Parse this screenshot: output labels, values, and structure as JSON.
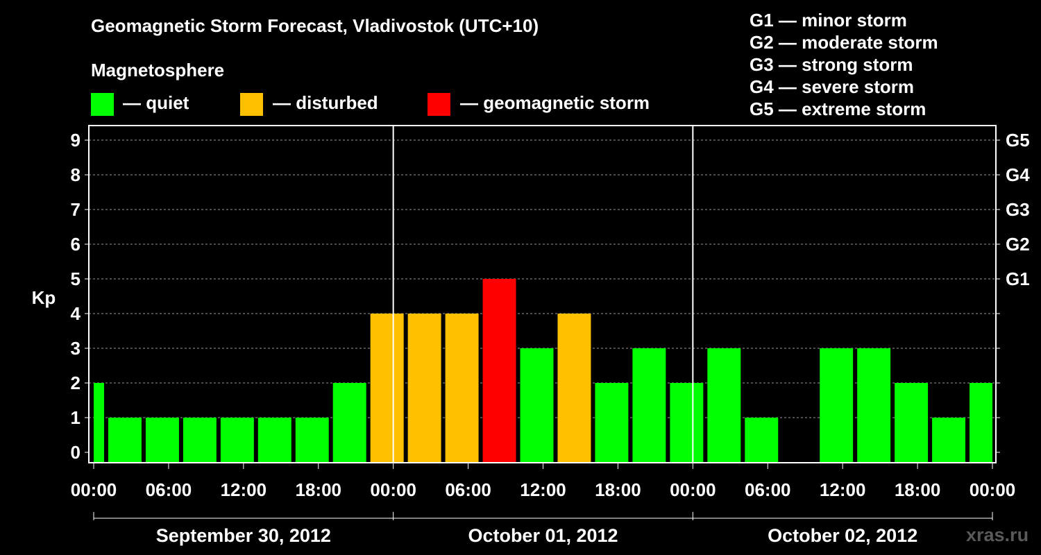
{
  "header": {
    "title": "Geomagnetic Storm Forecast, Vladivostok (UTC+10)",
    "magnetosphere_label": "Magnetosphere"
  },
  "legend": [
    {
      "label": "— quiet",
      "color": "#00ff00"
    },
    {
      "label": "— disturbed",
      "color": "#ffc000"
    },
    {
      "label": "— geomagnetic storm",
      "color": "#ff0000"
    }
  ],
  "storm_scale": [
    "G1 — minor storm",
    "G2 — moderate storm",
    "G3 — strong storm",
    "G4 — severe storm",
    "G5 — extreme storm"
  ],
  "watermark": "xras.ru",
  "chart_data": {
    "type": "bar",
    "title": "Geomagnetic Storm Forecast, Vladivostok (UTC+10)",
    "ylabel": "Kp",
    "ylim": [
      0,
      9
    ],
    "y_ticks": [
      "0",
      "1",
      "2",
      "3",
      "4",
      "5",
      "6",
      "7",
      "8",
      "9"
    ],
    "right_axis_labels": [
      {
        "kp": 5,
        "label": "G1"
      },
      {
        "kp": 6,
        "label": "G2"
      },
      {
        "kp": 7,
        "label": "G3"
      },
      {
        "kp": 8,
        "label": "G4"
      },
      {
        "kp": 9,
        "label": "G5"
      }
    ],
    "x_hours_range": [
      0,
      72
    ],
    "x_tick_labels": [
      "00:00",
      "06:00",
      "12:00",
      "18:00",
      "00:00",
      "06:00",
      "12:00",
      "18:00",
      "00:00",
      "06:00",
      "12:00",
      "18:00",
      "00:00"
    ],
    "day_labels": [
      "September 30, 2012",
      "October 01, 2012",
      "October 02, 2012"
    ],
    "status_colors": {
      "quiet": "#00ff00",
      "disturbed": "#ffc000",
      "storm": "#ff0000"
    },
    "bars": [
      {
        "start": 0,
        "end": 1,
        "kp": 2,
        "status": "quiet"
      },
      {
        "start": 1,
        "end": 4,
        "kp": 1,
        "status": "quiet"
      },
      {
        "start": 4,
        "end": 7,
        "kp": 1,
        "status": "quiet"
      },
      {
        "start": 7,
        "end": 10,
        "kp": 1,
        "status": "quiet"
      },
      {
        "start": 10,
        "end": 13,
        "kp": 1,
        "status": "quiet"
      },
      {
        "start": 13,
        "end": 16,
        "kp": 1,
        "status": "quiet"
      },
      {
        "start": 16,
        "end": 19,
        "kp": 1,
        "status": "quiet"
      },
      {
        "start": 19,
        "end": 22,
        "kp": 2,
        "status": "quiet"
      },
      {
        "start": 22,
        "end": 25,
        "kp": 4,
        "status": "disturbed"
      },
      {
        "start": 25,
        "end": 28,
        "kp": 4,
        "status": "disturbed"
      },
      {
        "start": 28,
        "end": 31,
        "kp": 4,
        "status": "disturbed"
      },
      {
        "start": 31,
        "end": 34,
        "kp": 5,
        "status": "storm"
      },
      {
        "start": 34,
        "end": 37,
        "kp": 3,
        "status": "quiet"
      },
      {
        "start": 37,
        "end": 40,
        "kp": 4,
        "status": "disturbed"
      },
      {
        "start": 40,
        "end": 43,
        "kp": 2,
        "status": "quiet"
      },
      {
        "start": 43,
        "end": 46,
        "kp": 3,
        "status": "quiet"
      },
      {
        "start": 46,
        "end": 49,
        "kp": 2,
        "status": "quiet"
      },
      {
        "start": 49,
        "end": 52,
        "kp": 3,
        "status": "quiet"
      },
      {
        "start": 52,
        "end": 55,
        "kp": 1,
        "status": "quiet"
      },
      {
        "start": 55,
        "end": 58,
        "kp": 0,
        "status": "quiet"
      },
      {
        "start": 58,
        "end": 61,
        "kp": 3,
        "status": "quiet"
      },
      {
        "start": 61,
        "end": 64,
        "kp": 3,
        "status": "quiet"
      },
      {
        "start": 64,
        "end": 67,
        "kp": 2,
        "status": "quiet"
      },
      {
        "start": 67,
        "end": 70,
        "kp": 1,
        "status": "quiet"
      },
      {
        "start": 70,
        "end": 72,
        "kp": 2,
        "status": "quiet"
      }
    ]
  }
}
